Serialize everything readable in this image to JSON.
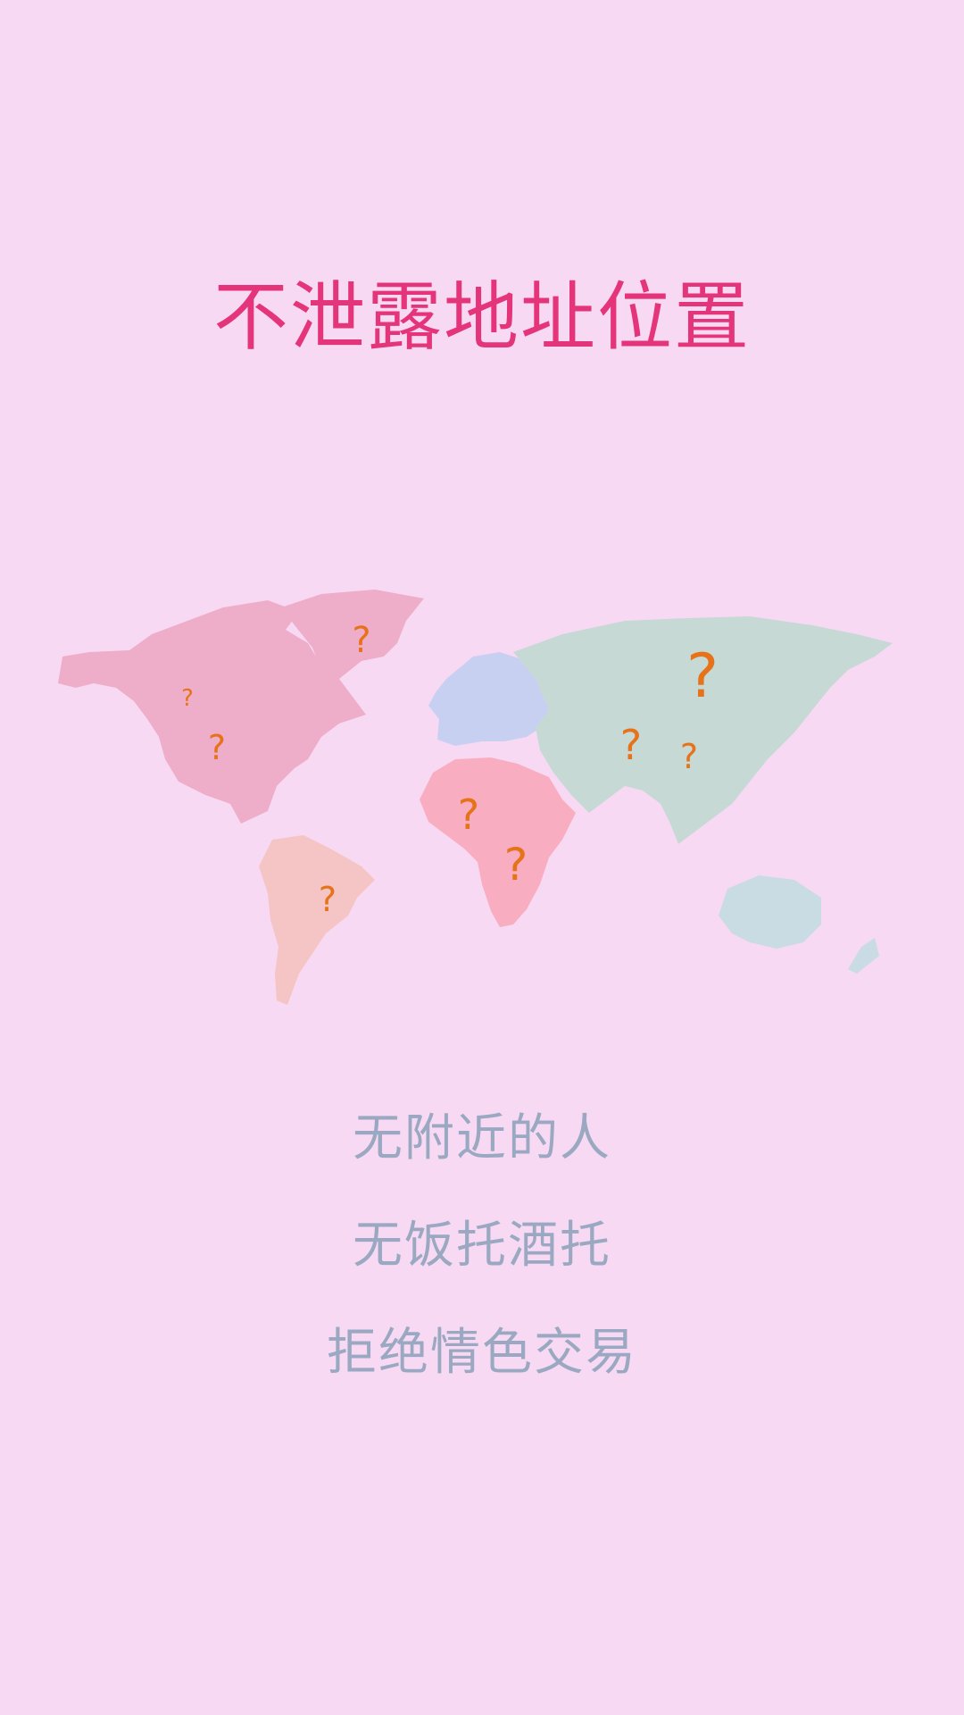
{
  "headline": "不泄露地址位置",
  "features": [
    "无附近的人",
    "无饭托酒托",
    "拒绝情色交易"
  ],
  "map": {
    "marker_glyph": "?",
    "marker_color": "#e6731a",
    "region_colors": {
      "north_america": "#eeaec9",
      "greenland": "#eeaec9",
      "south_america": "#f5c4c4",
      "europe": "#c8d0f2",
      "africa": "#f8aec0",
      "asia": "#c7d9d5",
      "oceania": "#c9dbe3"
    }
  },
  "colors": {
    "background": "#f8d9f3",
    "headline": "#e5357a",
    "feature_text": "#9aa9c1"
  }
}
